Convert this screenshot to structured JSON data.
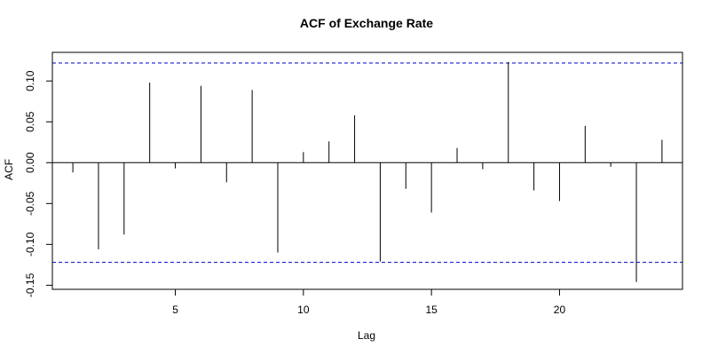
{
  "chart_data": {
    "type": "bar",
    "subtype": "acf-spikes",
    "title": "ACF of Exchange Rate",
    "xlabel": "Lag",
    "ylabel": "ACF",
    "xlim": [
      0.2,
      24.8
    ],
    "ylim": [
      -0.155,
      0.135
    ],
    "x_ticks": [
      5,
      10,
      15,
      20
    ],
    "y_ticks": [
      -0.15,
      -0.1,
      -0.05,
      0.0,
      0.05,
      0.1
    ],
    "y_tick_labels": [
      "-0.15",
      "-0.10",
      "-0.05",
      "0.00",
      "0.05",
      "0.10"
    ],
    "confidence_band": 0.122,
    "confidence_color": "#0000cc",
    "bar_color": "#000000",
    "grid": false,
    "lags": [
      1,
      2,
      3,
      4,
      5,
      6,
      7,
      8,
      9,
      10,
      11,
      12,
      13,
      14,
      15,
      16,
      17,
      18,
      19,
      20,
      21,
      22,
      23,
      24
    ],
    "values": [
      -0.012,
      -0.106,
      -0.088,
      0.098,
      -0.007,
      0.094,
      -0.024,
      0.089,
      -0.11,
      0.013,
      0.026,
      0.058,
      -0.121,
      -0.032,
      -0.061,
      0.018,
      -0.008,
      0.123,
      -0.034,
      -0.047,
      0.045,
      -0.005,
      -0.146,
      0.028
    ]
  }
}
